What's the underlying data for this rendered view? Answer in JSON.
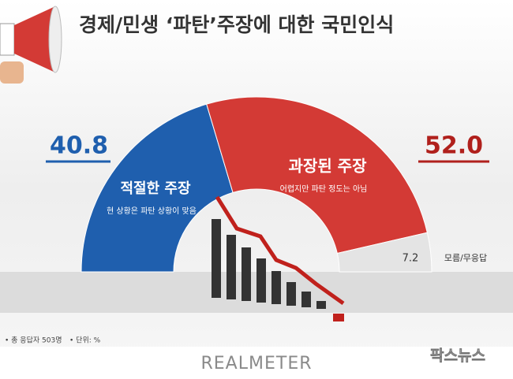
{
  "title": "경제/민생 ‘파탄’주장에 대한 국민인식",
  "chart_data": {
    "type": "pie",
    "categories": [
      "적절한 주장",
      "과장된 주장",
      "모름/무응답"
    ],
    "descriptions": [
      "현 상황은 파탄 상황이 맞음",
      "어렵지만 파탄 정도는 아님",
      null
    ],
    "values": [
      40.8,
      52.0,
      7.2
    ],
    "value_labels": [
      "40.8",
      "52.0",
      "7.2"
    ],
    "colors": [
      "#1f5fae",
      "#d33a35",
      "#e4e4e4"
    ]
  },
  "footnote": [
    "• 총 응답자 503명",
    "• 단위: %"
  ],
  "brand": "REALMETER",
  "watermark": "팍스뉴스"
}
